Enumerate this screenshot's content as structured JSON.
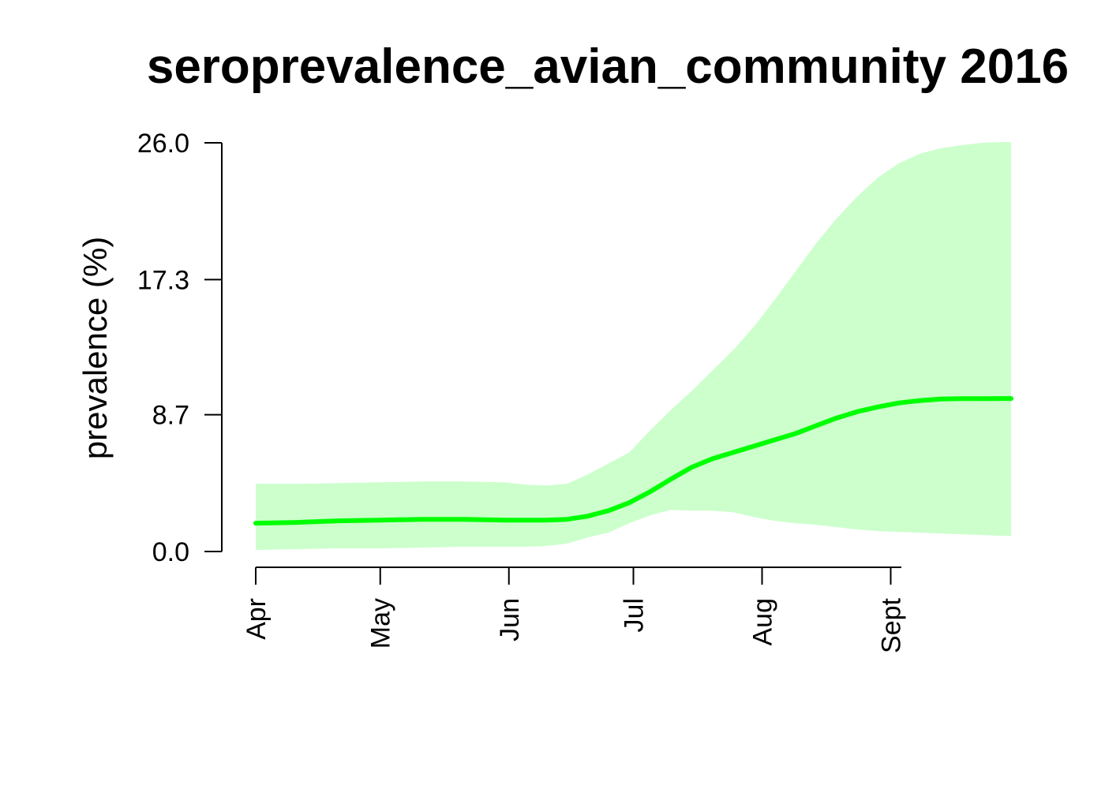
{
  "chart_data": {
    "type": "line",
    "title": "seroprevalence_avian_community 2016",
    "xlabel": "",
    "ylabel": "prevalence (%)",
    "x_axis": {
      "unit": "day of year 2016",
      "range": [
        92,
        274
      ],
      "ticks": [
        {
          "value": 92,
          "label": "Apr"
        },
        {
          "value": 122,
          "label": "May"
        },
        {
          "value": 153,
          "label": "Jun"
        },
        {
          "value": 183,
          "label": "Jul"
        },
        {
          "value": 214,
          "label": "Aug"
        },
        {
          "value": 245,
          "label": "Sept"
        }
      ]
    },
    "y_axis": {
      "range": [
        0,
        26
      ],
      "ticks": [
        {
          "value": 0,
          "label": "0.0"
        },
        {
          "value": 8.7,
          "label": "8.7"
        },
        {
          "value": 17.3,
          "label": "17.3"
        },
        {
          "value": 26,
          "label": "26.0"
        }
      ]
    },
    "grid": false,
    "legend": "none",
    "series": [
      {
        "color": "#00ff00",
        "band_color": "#ccffcc",
        "x": [
          92,
          102,
          112,
          122,
          132,
          142,
          152,
          157,
          162,
          167,
          172,
          177,
          182,
          187,
          192,
          197,
          202,
          207,
          212,
          217,
          222,
          227,
          232,
          237,
          242,
          247,
          252,
          257,
          262,
          267,
          272,
          274
        ],
        "mean": [
          1.8,
          1.85,
          1.95,
          2.0,
          2.05,
          2.05,
          2.0,
          2.0,
          2.0,
          2.05,
          2.25,
          2.6,
          3.1,
          3.8,
          4.6,
          5.35,
          5.9,
          6.3,
          6.7,
          7.1,
          7.5,
          8.0,
          8.5,
          8.9,
          9.2,
          9.45,
          9.6,
          9.7,
          9.72,
          9.72,
          9.73,
          9.73
        ],
        "lower": [
          0.1,
          0.15,
          0.2,
          0.2,
          0.25,
          0.3,
          0.3,
          0.3,
          0.35,
          0.5,
          0.9,
          1.2,
          1.8,
          2.3,
          2.65,
          2.6,
          2.6,
          2.5,
          2.2,
          1.95,
          1.8,
          1.7,
          1.55,
          1.4,
          1.3,
          1.25,
          1.2,
          1.15,
          1.1,
          1.05,
          1.0,
          1.0
        ],
        "upper": [
          4.3,
          4.3,
          4.35,
          4.4,
          4.45,
          4.45,
          4.4,
          4.25,
          4.2,
          4.3,
          4.9,
          5.6,
          6.3,
          7.7,
          9.0,
          10.2,
          11.5,
          12.8,
          14.3,
          16.0,
          17.8,
          19.6,
          21.2,
          22.6,
          23.8,
          24.7,
          25.3,
          25.65,
          25.85,
          26.0,
          26.05,
          26.05
        ]
      }
    ]
  }
}
